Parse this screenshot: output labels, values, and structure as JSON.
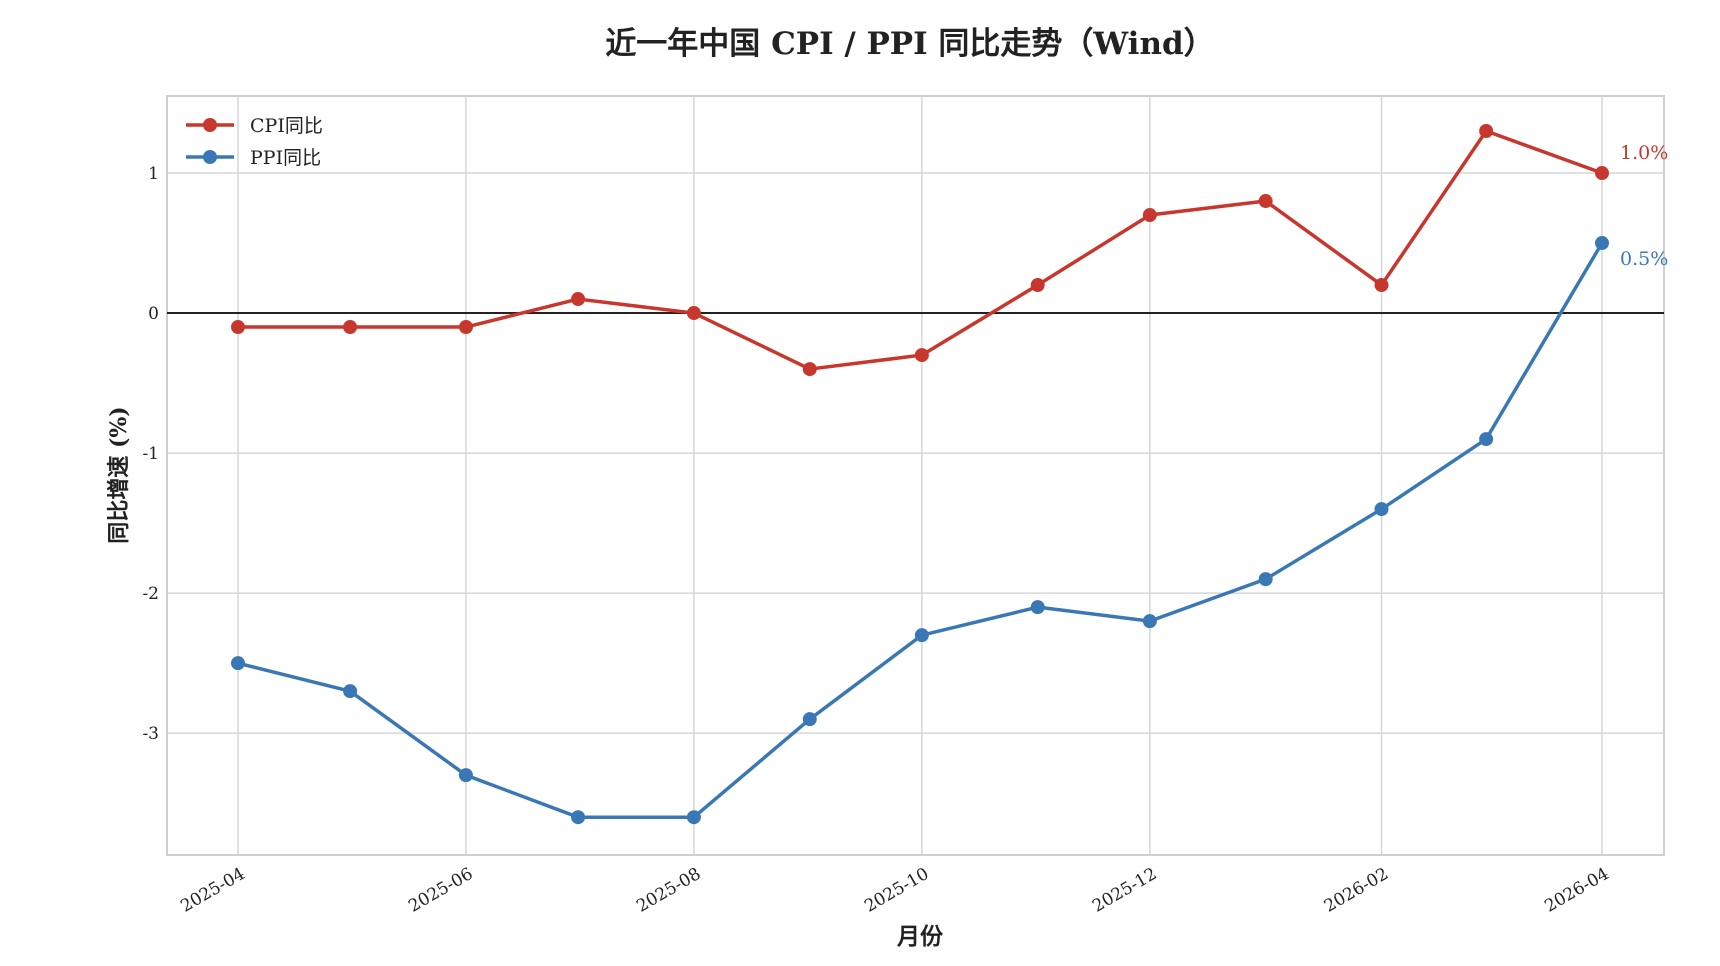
{
  "chart_data": {
    "type": "line",
    "title": "近一年中国 CPI / PPI 同比走势（Wind）",
    "xlabel": "月份",
    "ylabel": "同比增速 (%)",
    "x": [
      "2025-04",
      "2025-05",
      "2025-06",
      "2025-07",
      "2025-08",
      "2025-09",
      "2025-10",
      "2025-11",
      "2025-12",
      "2026-01",
      "2026-02",
      "2026-03",
      "2026-04"
    ],
    "xticks": [
      "2025-04",
      "2025-06",
      "2025-08",
      "2025-10",
      "2025-12",
      "2026-02",
      "2026-04"
    ],
    "yticks": [
      1,
      0,
      -1,
      -2,
      -3
    ],
    "ytick_labels": [
      "1",
      "0",
      "-1",
      "-2",
      "-3"
    ],
    "ylim": [
      -3.87,
      1.55
    ],
    "grid": true,
    "legend": "top-left",
    "zero_line": true,
    "series": [
      {
        "name": "CPI同比",
        "color": "#c8372d",
        "values": [
          -0.1,
          -0.1,
          -0.1,
          0.1,
          0.0,
          -0.4,
          -0.3,
          0.2,
          0.7,
          0.8,
          0.2,
          1.3,
          1.0
        ],
        "end_label": "1.0%"
      },
      {
        "name": "PPI同比",
        "color": "#3a78b5",
        "values": [
          -2.5,
          -2.7,
          -3.3,
          -3.6,
          -3.6,
          -2.9,
          -2.3,
          -2.1,
          -2.2,
          -1.9,
          -1.4,
          -0.9,
          0.5
        ],
        "end_label": "0.5%"
      }
    ]
  }
}
